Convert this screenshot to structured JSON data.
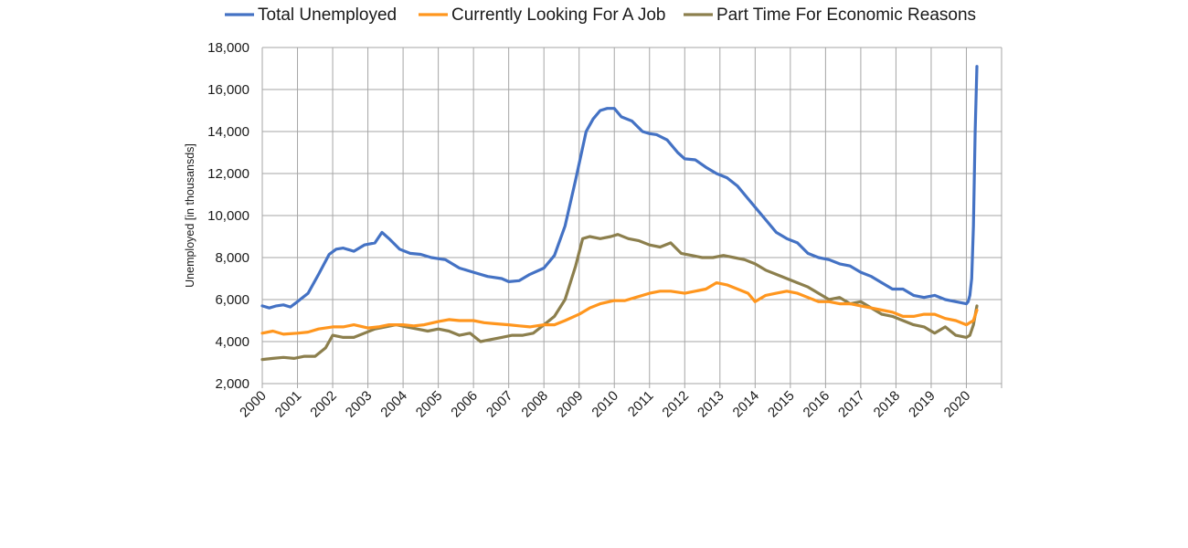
{
  "chart_data": {
    "type": "line",
    "title": "",
    "xlabel": "",
    "ylabel": "Unemployed [in thousansds]",
    "xlim": [
      2000,
      2021
    ],
    "ylim": [
      2000,
      18000
    ],
    "y_ticks": [
      "2,000",
      "4,000",
      "6,000",
      "8,000",
      "10,000",
      "12,000",
      "14,000",
      "16,000",
      "18,000"
    ],
    "x_ticks": [
      "2000",
      "2001",
      "2002",
      "2003",
      "2004",
      "2005",
      "2006",
      "2007",
      "2008",
      "2009",
      "2010",
      "2011",
      "2012",
      "2013",
      "2014",
      "2015",
      "2016",
      "2017",
      "2018",
      "2019",
      "2020"
    ],
    "grid": true,
    "legend_position": "top",
    "series": [
      {
        "name": "Total Unemployed",
        "color": "#4472c4",
        "x": [
          2000.0,
          2000.2,
          2000.4,
          2000.6,
          2000.8,
          2001.0,
          2001.3,
          2001.6,
          2001.9,
          2002.1,
          2002.3,
          2002.6,
          2002.9,
          2003.2,
          2003.4,
          2003.6,
          2003.9,
          2004.2,
          2004.5,
          2004.8,
          2005.2,
          2005.6,
          2006.0,
          2006.4,
          2006.8,
          2007.0,
          2007.3,
          2007.6,
          2008.0,
          2008.3,
          2008.6,
          2008.9,
          2009.2,
          2009.4,
          2009.6,
          2009.8,
          2010.0,
          2010.2,
          2010.5,
          2010.8,
          2011.0,
          2011.2,
          2011.5,
          2011.8,
          2012.0,
          2012.3,
          2012.6,
          2012.9,
          2013.2,
          2013.5,
          2013.8,
          2014.0,
          2014.3,
          2014.6,
          2014.9,
          2015.2,
          2015.5,
          2015.8,
          2016.1,
          2016.4,
          2016.7,
          2017.0,
          2017.3,
          2017.6,
          2017.9,
          2018.2,
          2018.5,
          2018.8,
          2019.1,
          2019.4,
          2019.7,
          2020.0,
          2020.05,
          2020.1,
          2020.15,
          2020.2,
          2020.25,
          2020.3
        ],
        "values": [
          5700,
          5600,
          5700,
          5750,
          5650,
          5900,
          6300,
          7200,
          8150,
          8400,
          8450,
          8300,
          8600,
          8700,
          9200,
          8900,
          8400,
          8200,
          8150,
          8000,
          7900,
          7500,
          7300,
          7100,
          7000,
          6850,
          6900,
          7200,
          7500,
          8100,
          9500,
          11700,
          14000,
          14600,
          15000,
          15100,
          15100,
          14700,
          14500,
          14000,
          13900,
          13850,
          13600,
          13000,
          12700,
          12650,
          12300,
          12000,
          11800,
          11400,
          10800,
          10400,
          9800,
          9200,
          8900,
          8700,
          8200,
          8000,
          7900,
          7700,
          7600,
          7300,
          7100,
          6800,
          6500,
          6500,
          6200,
          6100,
          6200,
          6000,
          5900,
          5800,
          5900,
          6200,
          7000,
          9500,
          14000,
          17100
        ]
      },
      {
        "name": "Currently Looking For A Job",
        "color": "#ff961e",
        "x": [
          2000.0,
          2000.3,
          2000.6,
          2001.0,
          2001.3,
          2001.6,
          2002.0,
          2002.3,
          2002.6,
          2003.0,
          2003.3,
          2003.6,
          2004.0,
          2004.3,
          2004.6,
          2005.0,
          2005.3,
          2005.6,
          2006.0,
          2006.3,
          2006.6,
          2007.0,
          2007.3,
          2007.6,
          2008.0,
          2008.3,
          2008.6,
          2009.0,
          2009.3,
          2009.6,
          2010.0,
          2010.3,
          2010.6,
          2011.0,
          2011.3,
          2011.6,
          2012.0,
          2012.3,
          2012.6,
          2012.9,
          2013.2,
          2013.5,
          2013.8,
          2014.0,
          2014.3,
          2014.6,
          2014.9,
          2015.2,
          2015.5,
          2015.8,
          2016.1,
          2016.4,
          2016.7,
          2017.0,
          2017.3,
          2017.6,
          2017.9,
          2018.2,
          2018.5,
          2018.8,
          2019.1,
          2019.4,
          2019.7,
          2020.0,
          2020.1,
          2020.2,
          2020.3
        ],
        "values": [
          4400,
          4500,
          4350,
          4400,
          4450,
          4600,
          4700,
          4700,
          4800,
          4650,
          4700,
          4800,
          4800,
          4750,
          4800,
          4950,
          5050,
          5000,
          5000,
          4900,
          4850,
          4800,
          4750,
          4700,
          4800,
          4800,
          5000,
          5300,
          5600,
          5800,
          5950,
          5950,
          6100,
          6300,
          6400,
          6400,
          6300,
          6400,
          6500,
          6800,
          6700,
          6500,
          6300,
          5900,
          6200,
          6300,
          6400,
          6300,
          6100,
          5900,
          5900,
          5800,
          5800,
          5700,
          5600,
          5500,
          5400,
          5200,
          5200,
          5300,
          5300,
          5100,
          5000,
          4800,
          4900,
          5000,
          5500
        ]
      },
      {
        "name": "Part Time For Economic Reasons",
        "color": "#8c7f4d",
        "x": [
          2000.0,
          2000.3,
          2000.6,
          2000.9,
          2001.2,
          2001.5,
          2001.8,
          2002.0,
          2002.3,
          2002.6,
          2002.9,
          2003.2,
          2003.5,
          2003.8,
          2004.1,
          2004.4,
          2004.7,
          2005.0,
          2005.3,
          2005.6,
          2005.9,
          2006.2,
          2006.5,
          2006.8,
          2007.1,
          2007.4,
          2007.7,
          2008.0,
          2008.3,
          2008.6,
          2008.9,
          2009.1,
          2009.3,
          2009.6,
          2009.9,
          2010.1,
          2010.4,
          2010.7,
          2011.0,
          2011.3,
          2011.6,
          2011.9,
          2012.2,
          2012.5,
          2012.8,
          2013.1,
          2013.4,
          2013.7,
          2014.0,
          2014.3,
          2014.6,
          2014.9,
          2015.2,
          2015.5,
          2015.8,
          2016.1,
          2016.4,
          2016.7,
          2017.0,
          2017.3,
          2017.6,
          2017.9,
          2018.2,
          2018.5,
          2018.8,
          2019.1,
          2019.4,
          2019.7,
          2020.0,
          2020.1,
          2020.2,
          2020.3
        ],
        "values": [
          3150,
          3200,
          3250,
          3200,
          3300,
          3300,
          3700,
          4300,
          4200,
          4200,
          4400,
          4600,
          4700,
          4800,
          4700,
          4600,
          4500,
          4600,
          4500,
          4300,
          4400,
          4000,
          4100,
          4200,
          4300,
          4300,
          4400,
          4800,
          5200,
          6000,
          7600,
          8900,
          9000,
          8900,
          9000,
          9100,
          8900,
          8800,
          8600,
          8500,
          8700,
          8200,
          8100,
          8000,
          8000,
          8100,
          8000,
          7900,
          7700,
          7400,
          7200,
          7000,
          6800,
          6600,
          6300,
          6000,
          6100,
          5800,
          5900,
          5600,
          5300,
          5200,
          5000,
          4800,
          4700,
          4400,
          4700,
          4300,
          4200,
          4300,
          4800,
          5700
        ]
      }
    ]
  }
}
